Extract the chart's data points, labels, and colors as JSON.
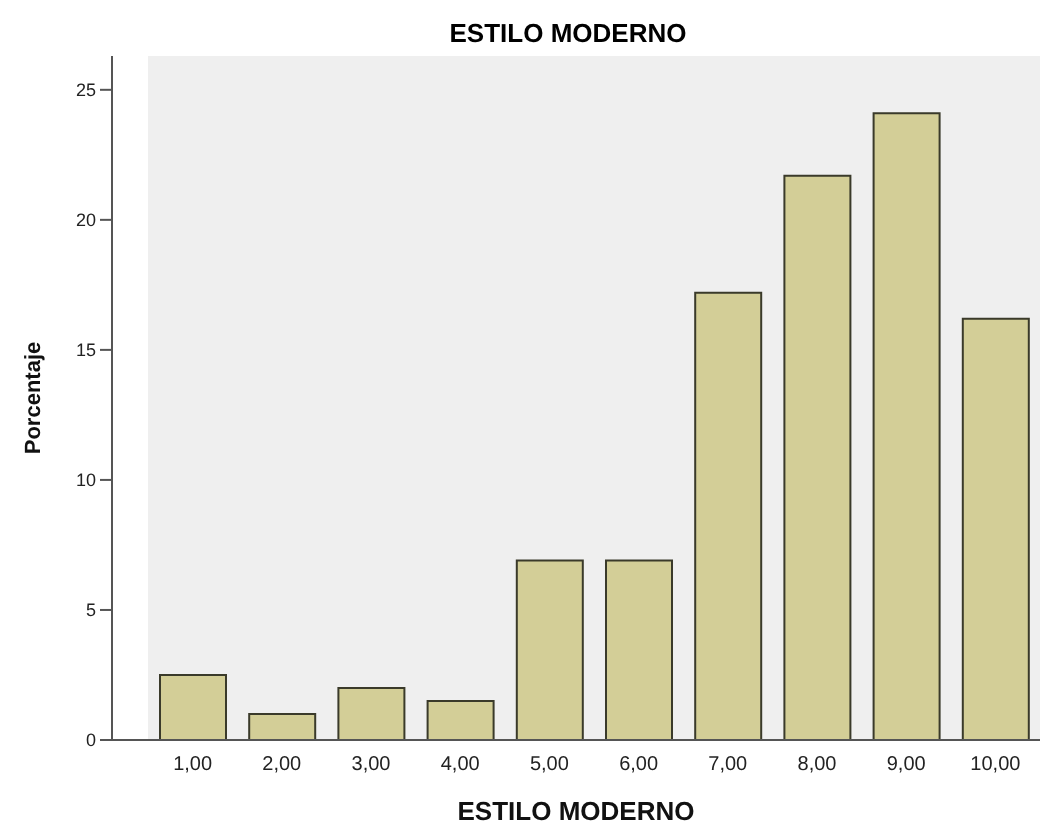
{
  "chart_data": {
    "type": "bar",
    "title": "ESTILO MODERNO",
    "xlabel": "ESTILO MODERNO",
    "ylabel": "Porcentaje",
    "categories": [
      "1,00",
      "2,00",
      "3,00",
      "4,00",
      "5,00",
      "6,00",
      "7,00",
      "8,00",
      "9,00",
      "10,00"
    ],
    "values": [
      2.5,
      1.0,
      2.0,
      1.5,
      6.9,
      6.9,
      17.2,
      21.7,
      24.1,
      16.2
    ],
    "color": "#d3ce97",
    "ylim": [
      0,
      26.3
    ],
    "yticks": [
      0,
      5,
      10,
      15,
      20,
      25
    ],
    "grid": false,
    "legend": false
  }
}
